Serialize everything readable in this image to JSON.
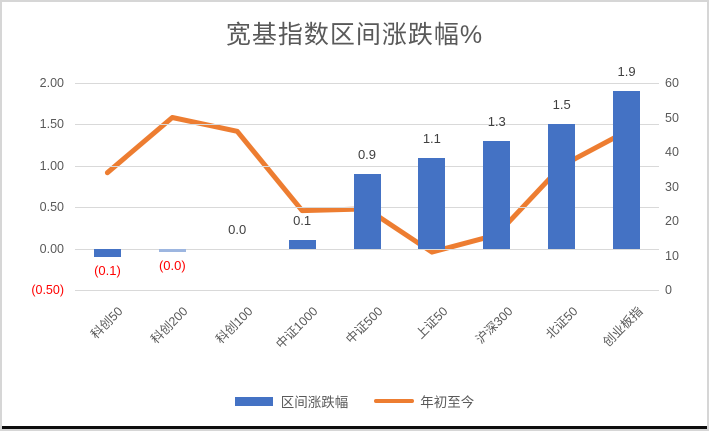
{
  "title": "宽基指数区间涨跌幅%",
  "colors": {
    "bar": "#4472C4",
    "bar_thin": "#9DB6E0",
    "line": "#ED7D31",
    "negative_label": "#FF0000",
    "axis_text": "#595959",
    "data_label": "#404040",
    "gridline": "#D9D9D9"
  },
  "chart_data": {
    "type": "bar",
    "subtype": "bar-line-combo",
    "title": "宽基指数区间涨跌幅%",
    "categories": [
      "科创50",
      "科创200",
      "科创100",
      "中证1000",
      "中证500",
      "上证50",
      "沪深300",
      "北证50",
      "创业板指"
    ],
    "series": [
      {
        "name": "区间涨跌幅",
        "type": "bar",
        "axis": "left",
        "values": [
          -0.1,
          -0.04,
          0.0,
          0.1,
          0.9,
          1.1,
          1.3,
          1.5,
          1.9
        ],
        "labels": [
          "(0.1)",
          "(0.0)",
          "0.0",
          "0.1",
          "0.9",
          "1.1",
          "1.3",
          "1.5",
          "1.9"
        ]
      },
      {
        "name": "年初至今",
        "type": "line",
        "axis": "right",
        "values": [
          34,
          50,
          46,
          23,
          23.5,
          11,
          16,
          36,
          46
        ]
      }
    ],
    "left_axis": {
      "ticks": [
        "2.00",
        "1.50",
        "1.00",
        "0.50",
        "0.00",
        "(0.50)"
      ],
      "min": -0.5,
      "max": 2.0,
      "step": 0.5
    },
    "right_axis": {
      "ticks": [
        "60",
        "50",
        "40",
        "30",
        "20",
        "10",
        "0"
      ],
      "min": 0,
      "max": 60,
      "step": 10
    },
    "grid": true,
    "legend_position": "bottom"
  }
}
